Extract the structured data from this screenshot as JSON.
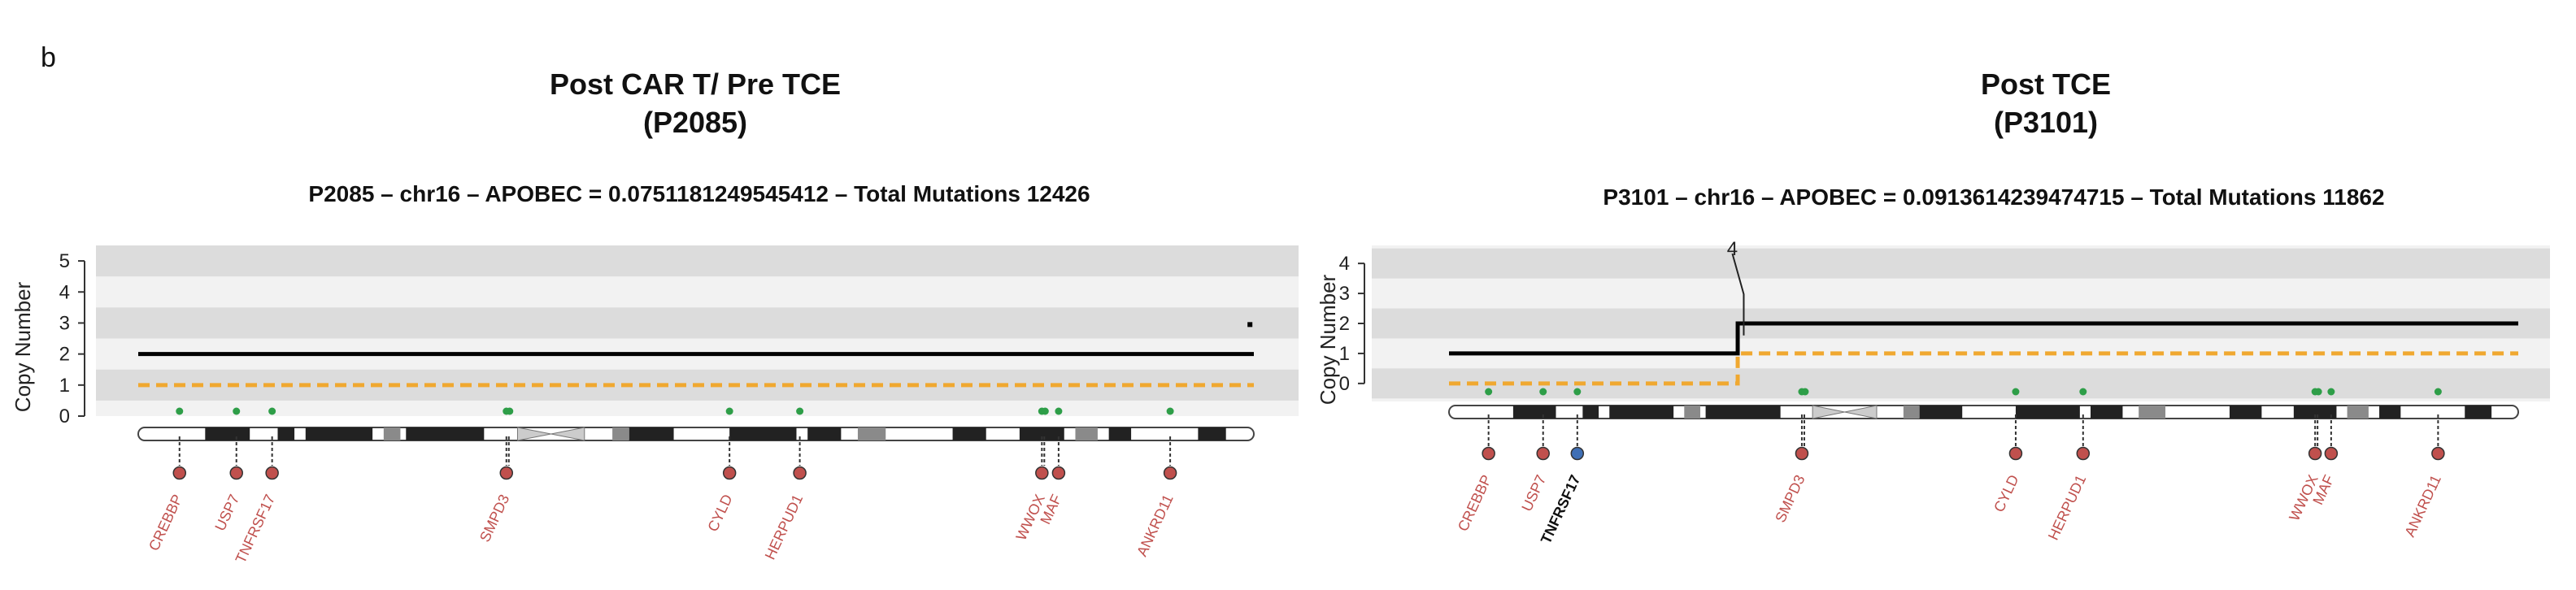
{
  "panel_letter": "b",
  "chart_data": [
    {
      "type": "line",
      "title": "Post CAR T/ Pre TCE",
      "subtitle": "(P2085)",
      "plot_title": "P2085 – chr16 –  APOBEC =  0.0751181249545412  – Total Mutations  12426",
      "ylabel": "Copy Number",
      "ylim": [
        0,
        5.5
      ],
      "yticks": [
        0,
        1,
        2,
        3,
        4,
        5
      ],
      "bands": [
        [
          0.5,
          1.5
        ],
        [
          2.5,
          3.5
        ],
        [
          4.5,
          5.5
        ]
      ],
      "colors": {
        "total": "#000000",
        "minor": "#F0A830",
        "band": "#DCDCDC",
        "altband": "#F2F2F2",
        "gene": "#C0504D",
        "blue": "#3F6FB5",
        "dot": "#2E9E48"
      },
      "series": [
        {
          "values": [
            [
              0,
              2
            ],
            [
              1,
              2
            ]
          ],
          "dash": false
        },
        {
          "values": [
            [
              0,
              1
            ],
            [
              1,
              1
            ]
          ],
          "dash": true
        }
      ],
      "extra_marks": [
        {
          "x": 0.9965,
          "y": 2.95
        }
      ],
      "genes": [
        {
          "name": "CREBBP",
          "x": 0.037,
          "color": "gene"
        },
        {
          "name": "USP7",
          "x": 0.088,
          "color": "gene"
        },
        {
          "name": "TNFRSF17",
          "x": 0.12,
          "color": "gene"
        },
        {
          "name": "SMPD3",
          "x": 0.33,
          "color": "gene",
          "pair": true
        },
        {
          "name": "CYLD",
          "x": 0.53,
          "color": "gene"
        },
        {
          "name": "HERPUD1",
          "x": 0.593,
          "color": "gene"
        },
        {
          "name": "WWOX",
          "x": 0.81,
          "color": "gene",
          "pair": true
        },
        {
          "name": "MAF",
          "x": 0.825,
          "color": "gene"
        },
        {
          "name": "ANKRD11",
          "x": 0.925,
          "color": "gene"
        }
      ]
    },
    {
      "type": "line",
      "title": "Post TCE",
      "subtitle": "(P3101)",
      "plot_title": "P3101 – chr16 –  APOBEC =  0.0913614239474715  – Total Mutations  11862",
      "ylabel": "Copy Number",
      "ylim": [
        -0.6,
        4.6
      ],
      "yticks": [
        0,
        1,
        2,
        3,
        4
      ],
      "bands": [
        [
          -0.5,
          0.5
        ],
        [
          1.5,
          2.5
        ],
        [
          3.5,
          4.5
        ]
      ],
      "annotation": "4",
      "annotation_x": 0.265,
      "colors": {
        "total": "#000000",
        "minor": "#F0A830",
        "band": "#DCDCDC",
        "altband": "#F2F2F2",
        "gene": "#C0504D",
        "blue": "#3F6FB5",
        "black": "#111111",
        "dot": "#2E9E48"
      },
      "series": [
        {
          "values": [
            [
              0,
              1
            ],
            [
              0.27,
              1
            ],
            [
              0.27,
              2
            ],
            [
              1,
              2
            ]
          ],
          "dash": false
        },
        {
          "values": [
            [
              0,
              0
            ],
            [
              0.27,
              0
            ],
            [
              0.27,
              1
            ],
            [
              1,
              1
            ]
          ],
          "dash": true
        }
      ],
      "genes": [
        {
          "name": "CREBBP",
          "x": 0.037,
          "color": "gene"
        },
        {
          "name": "USP7",
          "x": 0.088,
          "color": "gene"
        },
        {
          "name": "TNFRSF17",
          "x": 0.12,
          "color": "blue",
          "label_color": "black"
        },
        {
          "name": "SMPD3",
          "x": 0.33,
          "color": "gene",
          "pair": true
        },
        {
          "name": "CYLD",
          "x": 0.53,
          "color": "gene"
        },
        {
          "name": "HERPUD1",
          "x": 0.593,
          "color": "gene"
        },
        {
          "name": "WWOX",
          "x": 0.81,
          "color": "gene",
          "pair": true
        },
        {
          "name": "MAF",
          "x": 0.825,
          "color": "gene"
        },
        {
          "name": "ANKRD11",
          "x": 0.925,
          "color": "gene"
        }
      ]
    }
  ]
}
